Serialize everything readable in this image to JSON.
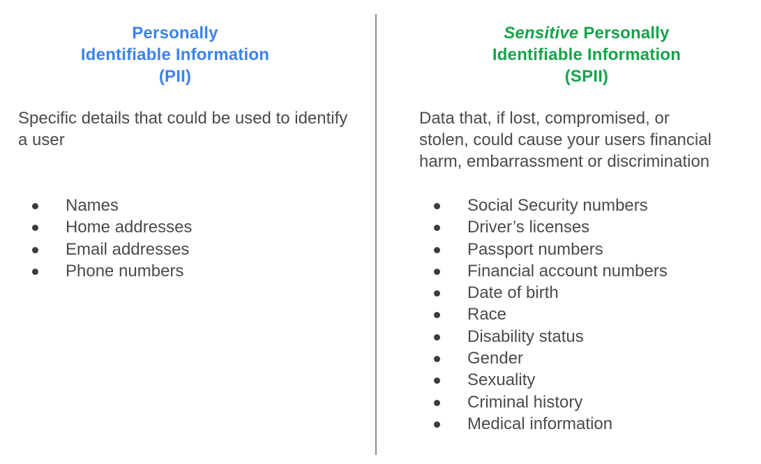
{
  "pii": {
    "title_line1": "Personally",
    "title_line2": "Identifiable Information",
    "title_line3": "(PII)",
    "description": "Specific details that could be used to identify a user",
    "items": [
      "Names",
      "Home addresses",
      "Email addresses",
      "Phone numbers"
    ],
    "color": "#3b82f0"
  },
  "spii": {
    "title_line1_italic": "Sensitive",
    "title_line1_rest": " Personally",
    "title_line2": "Identifiable Information",
    "title_line3": "(SPII)",
    "description_line1": "Data that, if lost, compromised, or",
    "description_line2": "stolen, could cause your users financial",
    "description_line3": "harm, embarrassment or discrimination",
    "items": [
      "Social Security numbers",
      "Driver’s licenses",
      "Passport numbers",
      "Financial account numbers",
      "Date of birth",
      "Race",
      "Disability status",
      "Gender",
      "Sexuality",
      "Criminal history",
      "Medical information"
    ],
    "color": "#14a34a"
  }
}
